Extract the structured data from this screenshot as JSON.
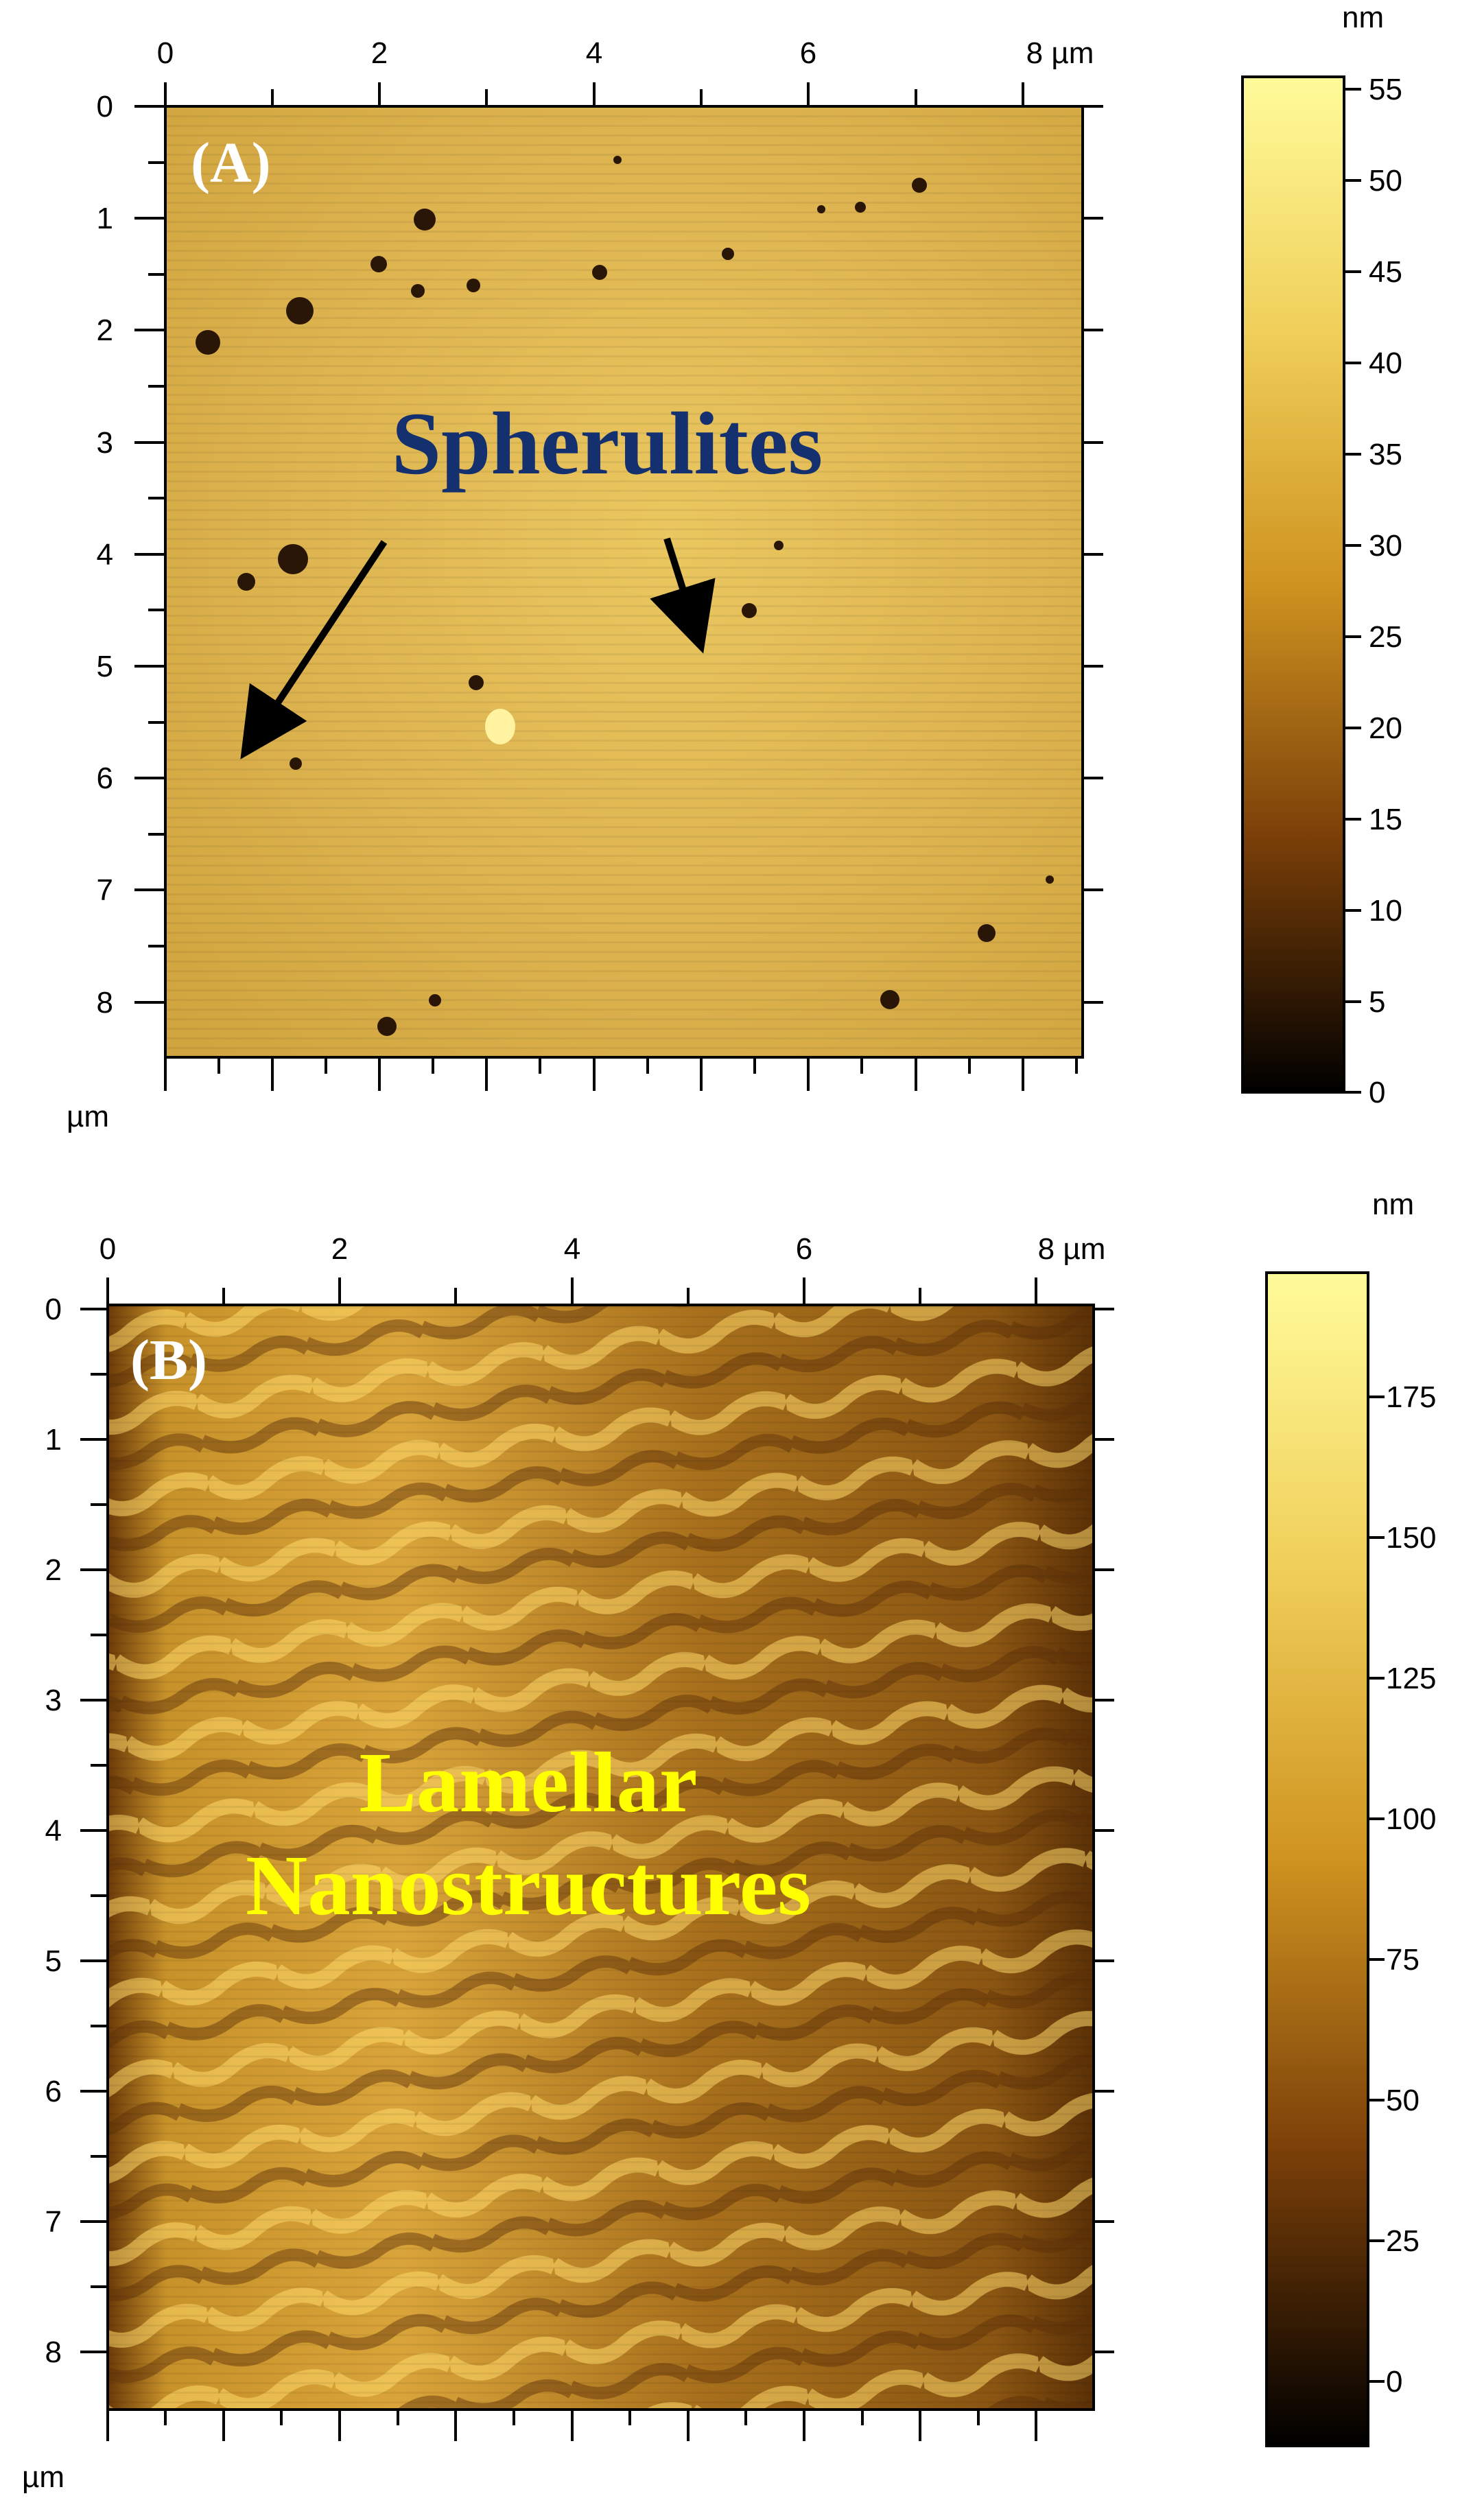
{
  "panels": [
    {
      "letter": "(A)",
      "x_ticks": [
        "0",
        "2",
        "4",
        "6",
        "8 µm"
      ],
      "y_ticks": [
        "0",
        "1",
        "2",
        "3",
        "4",
        "5",
        "6",
        "7",
        "8"
      ],
      "axis_unit": "µm",
      "colorbar_unit": "nm",
      "colorbar_ticks": [
        "55",
        "50",
        "45",
        "40",
        "35",
        "30",
        "25",
        "20",
        "15",
        "10",
        "5",
        "0"
      ],
      "annotation": "Spherulites",
      "annotation_color": "#14306e"
    },
    {
      "letter": "(B)",
      "x_ticks": [
        "0",
        "2",
        "4",
        "6",
        "8 µm"
      ],
      "y_ticks": [
        "0",
        "1",
        "2",
        "3",
        "4",
        "5",
        "6",
        "7",
        "8"
      ],
      "axis_unit": "µm",
      "colorbar_unit": "nm",
      "colorbar_ticks": [
        "175",
        "150",
        "125",
        "100",
        "75",
        "50",
        "25",
        "0"
      ],
      "annotation_lines": [
        "Lamellar",
        "Nanostructures"
      ],
      "annotation_color": "#ffff00"
    }
  ],
  "colors": {
    "afm_light": "#fff49a",
    "afm_mid": "#d9a733",
    "afm_dark": "#000000"
  }
}
